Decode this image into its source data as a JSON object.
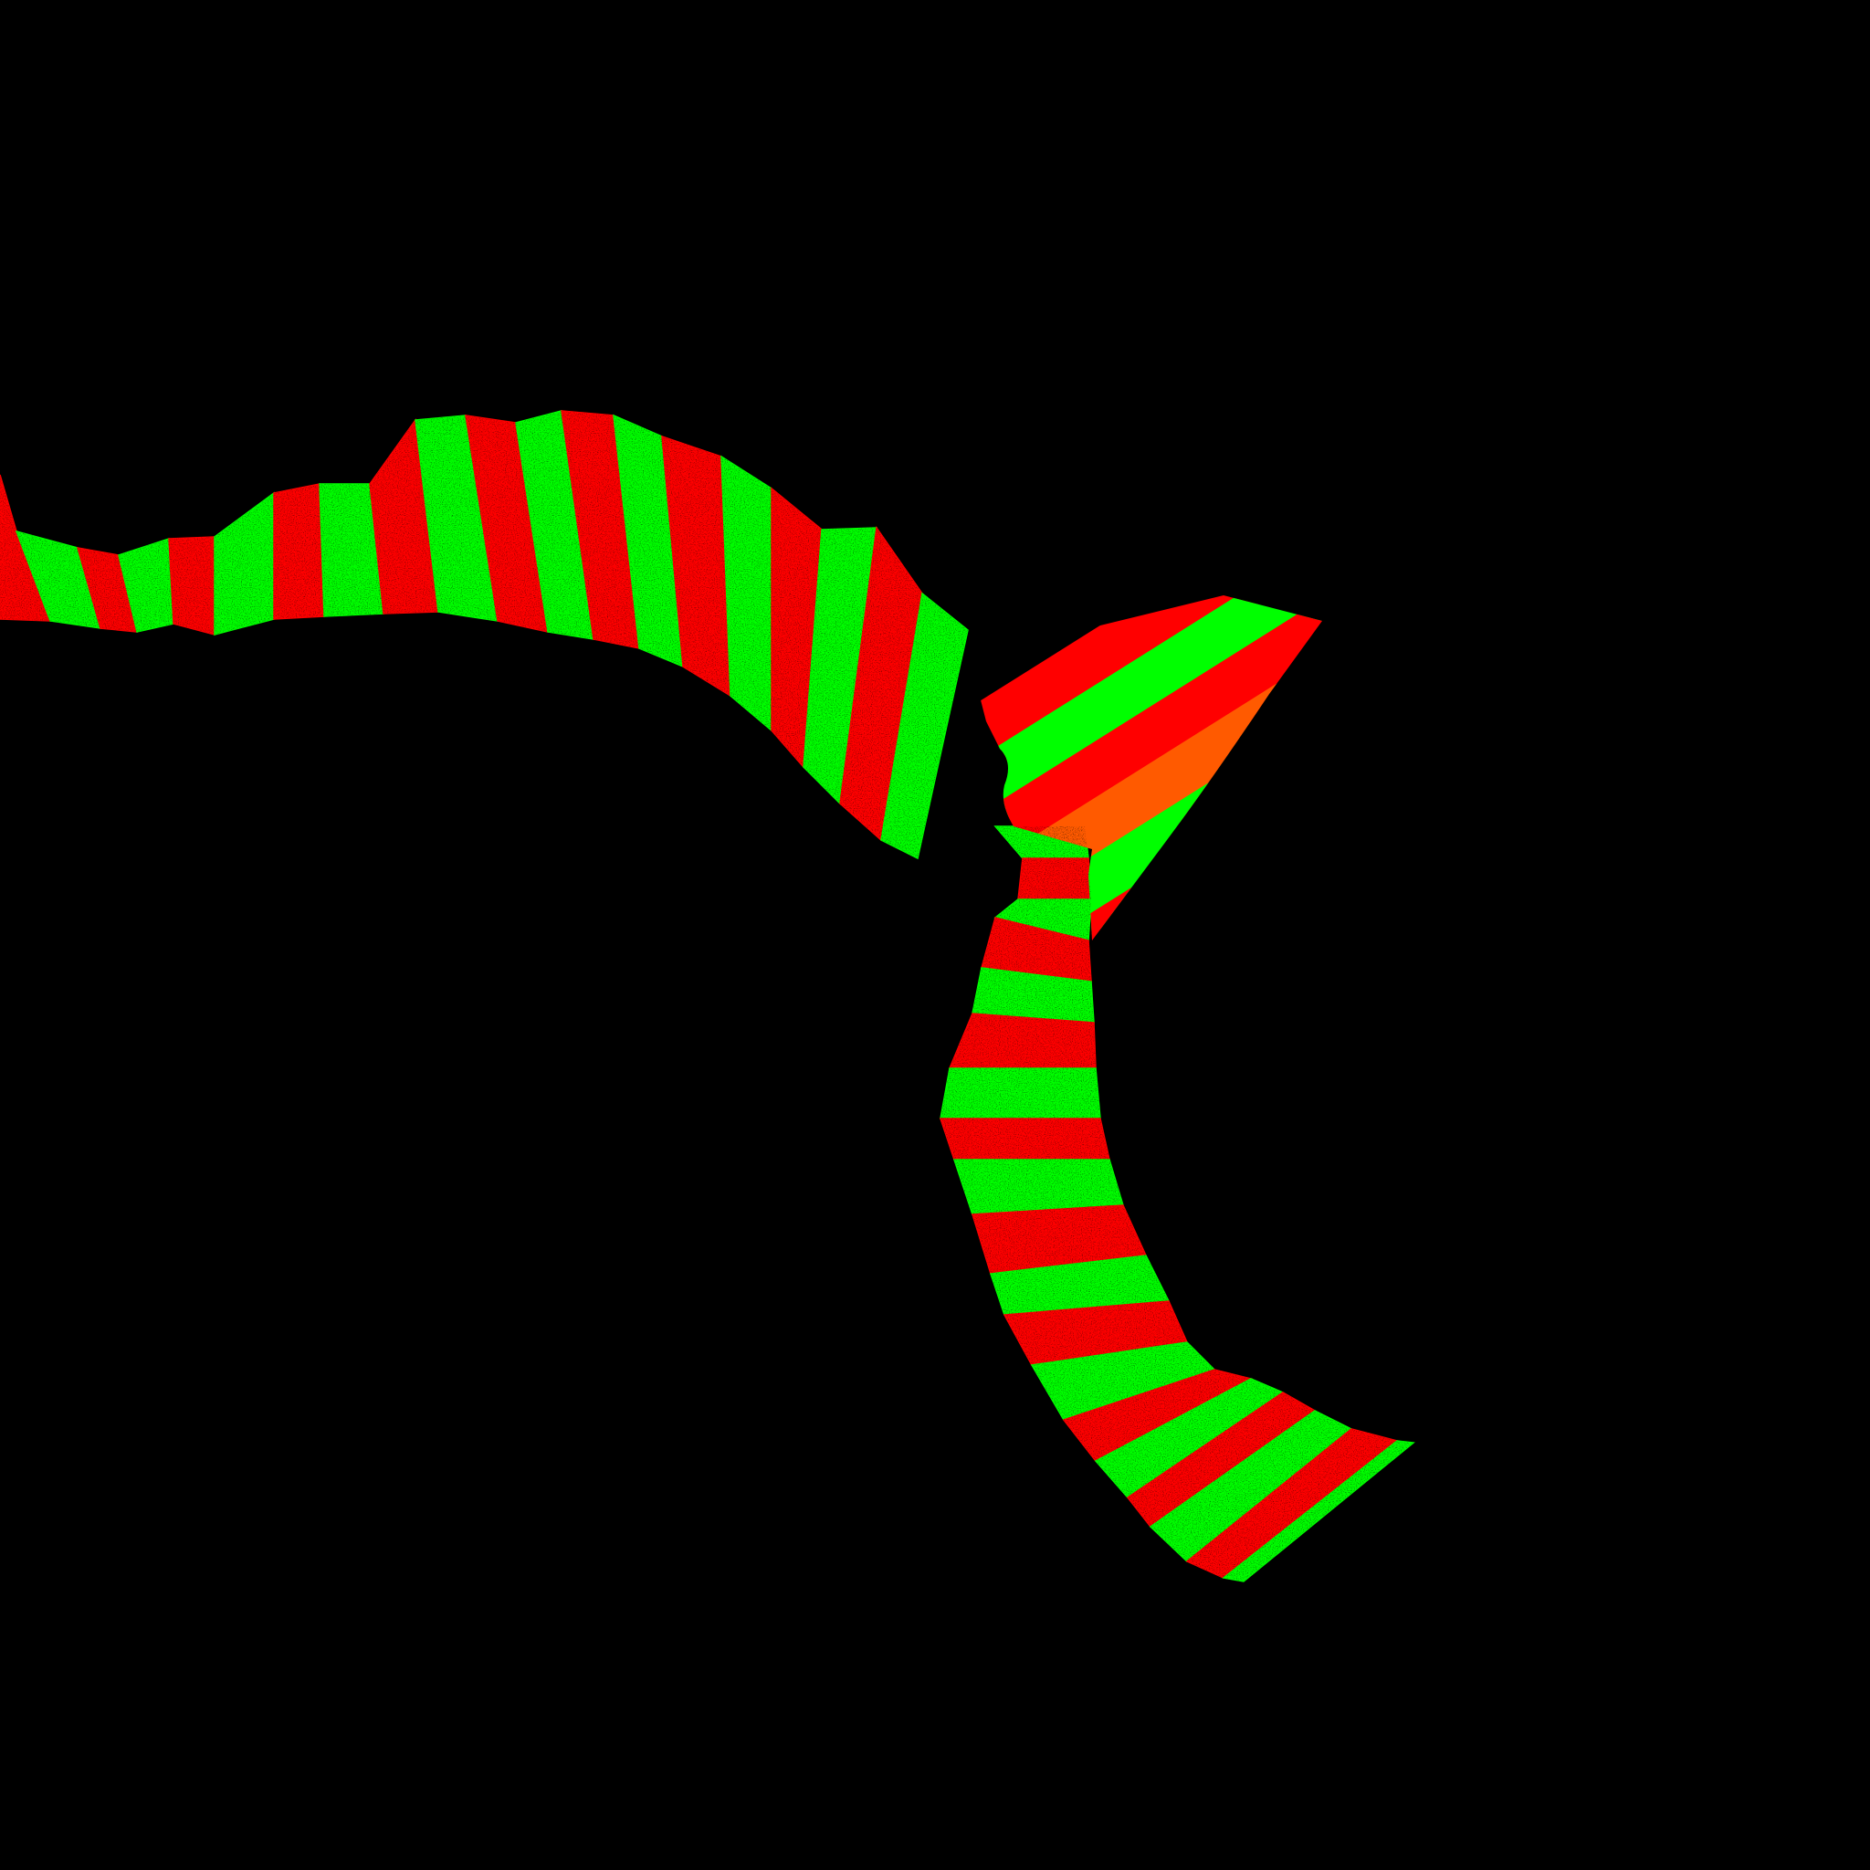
{
  "scene": {
    "background_color": "#000000",
    "description_colors": {
      "stripe_a": "#ff0000",
      "stripe_b": "#00ff00",
      "accent_orange": "#ff5a00",
      "texture": "#000000"
    },
    "regions": [
      "upper-arc-band",
      "lower-curved-band",
      "triangle-wedge"
    ]
  }
}
